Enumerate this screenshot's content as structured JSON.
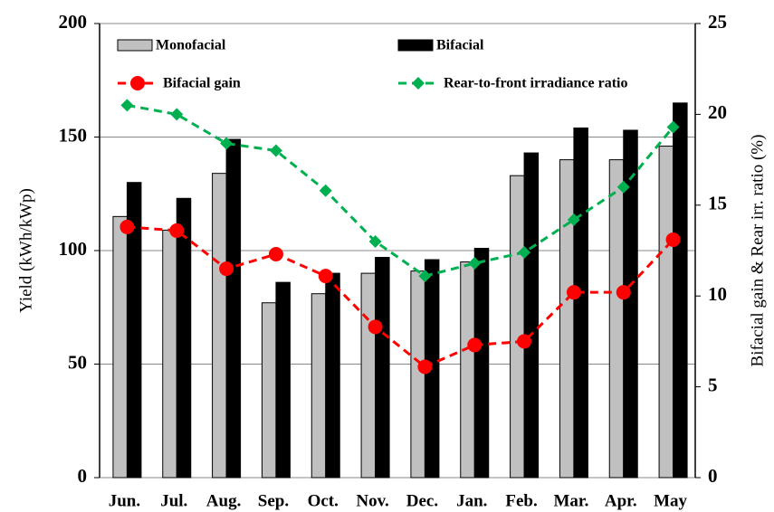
{
  "chart_data": {
    "type": "bar",
    "categories": [
      "Jun.",
      "Jul.",
      "Aug.",
      "Sep.",
      "Oct.",
      "Nov.",
      "Dec.",
      "Jan.",
      "Feb.",
      "Mar.",
      "Apr.",
      "May"
    ],
    "series": [
      {
        "name": "Monofacial",
        "type": "bar",
        "color": "#c0c0c0",
        "values": [
          115,
          109,
          134,
          77,
          81,
          90,
          91,
          95,
          133,
          140,
          140,
          146
        ]
      },
      {
        "name": "Bifacial",
        "type": "bar",
        "color": "#000000",
        "values": [
          130,
          123,
          149,
          86,
          90,
          97,
          96,
          101,
          143,
          154,
          153,
          165
        ]
      },
      {
        "name": "Bifacial gain",
        "type": "line",
        "axis": "y2",
        "marker": "circle",
        "color": "#ff0000",
        "values": [
          13.8,
          13.6,
          11.5,
          12.3,
          11.1,
          8.3,
          6.1,
          7.3,
          7.5,
          10.2,
          10.2,
          13.1
        ]
      },
      {
        "name": "Rear-to-front irradiance ratio",
        "type": "line",
        "axis": "y2",
        "marker": "diamond",
        "color": "#00b050",
        "values": [
          20.5,
          20.0,
          18.4,
          18.0,
          15.8,
          13.0,
          11.1,
          11.8,
          12.4,
          14.2,
          16.0,
          19.3
        ]
      }
    ],
    "ylabel": "Yield (kWh/kWp)",
    "y2label": "Bifacial gain & Rear irr. ratio (%)",
    "ylim": [
      0,
      200
    ],
    "yticks": [
      0,
      50,
      100,
      150,
      200
    ],
    "y2lim": [
      0,
      25
    ],
    "y2ticks": [
      0,
      5,
      10,
      15,
      20,
      25
    ],
    "grid": true
  }
}
